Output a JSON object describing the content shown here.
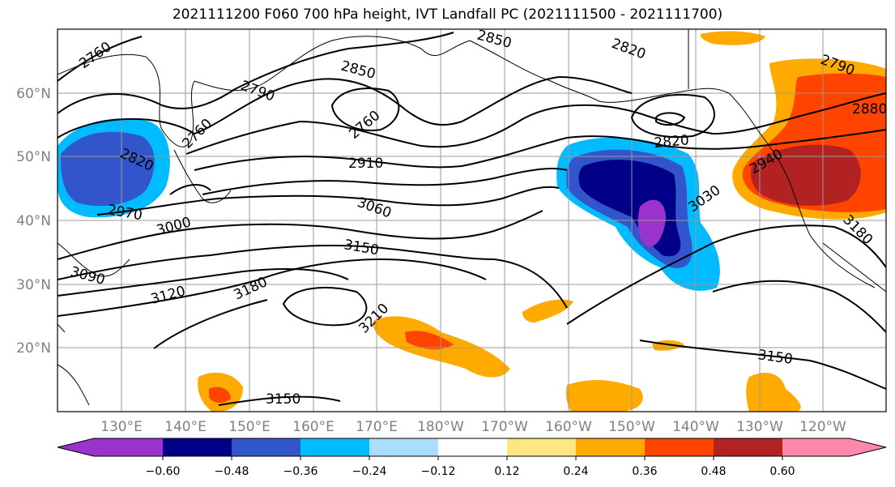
{
  "title": "2021111200 F060 700 hPa height, IVT Landfall PC (2021111500 - 2021111700)",
  "map": {
    "lon_labels": [
      "130°E",
      "140°E",
      "150°E",
      "160°E",
      "170°E",
      "180°W",
      "170°W",
      "160°W",
      "150°W",
      "140°W",
      "130°W",
      "120°W"
    ],
    "lat_labels": [
      "60°N",
      "50°N",
      "40°N",
      "30°N",
      "20°N"
    ],
    "contour_labels": [
      "2760",
      "2850",
      "2820",
      "2790",
      "2850",
      "2790",
      "2760",
      "2760",
      "2820",
      "2820",
      "2910",
      "2970",
      "3000",
      "3060",
      "3030",
      "2940",
      "2880",
      "3090",
      "3150",
      "3120",
      "3180",
      "3210",
      "3180",
      "3150",
      "3150"
    ]
  },
  "colorbar": {
    "colors": [
      "#9933cc",
      "#000088",
      "#3355cc",
      "#00bbff",
      "#aaddff",
      "#ffffff",
      "#ffe680",
      "#ffaa00",
      "#ff4400",
      "#b22222",
      "#ff88aa"
    ],
    "labels": [
      "−0.60",
      "−0.48",
      "−0.36",
      "−0.24",
      "−0.12",
      "0.12",
      "0.24",
      "0.36",
      "0.48",
      "0.60"
    ]
  }
}
